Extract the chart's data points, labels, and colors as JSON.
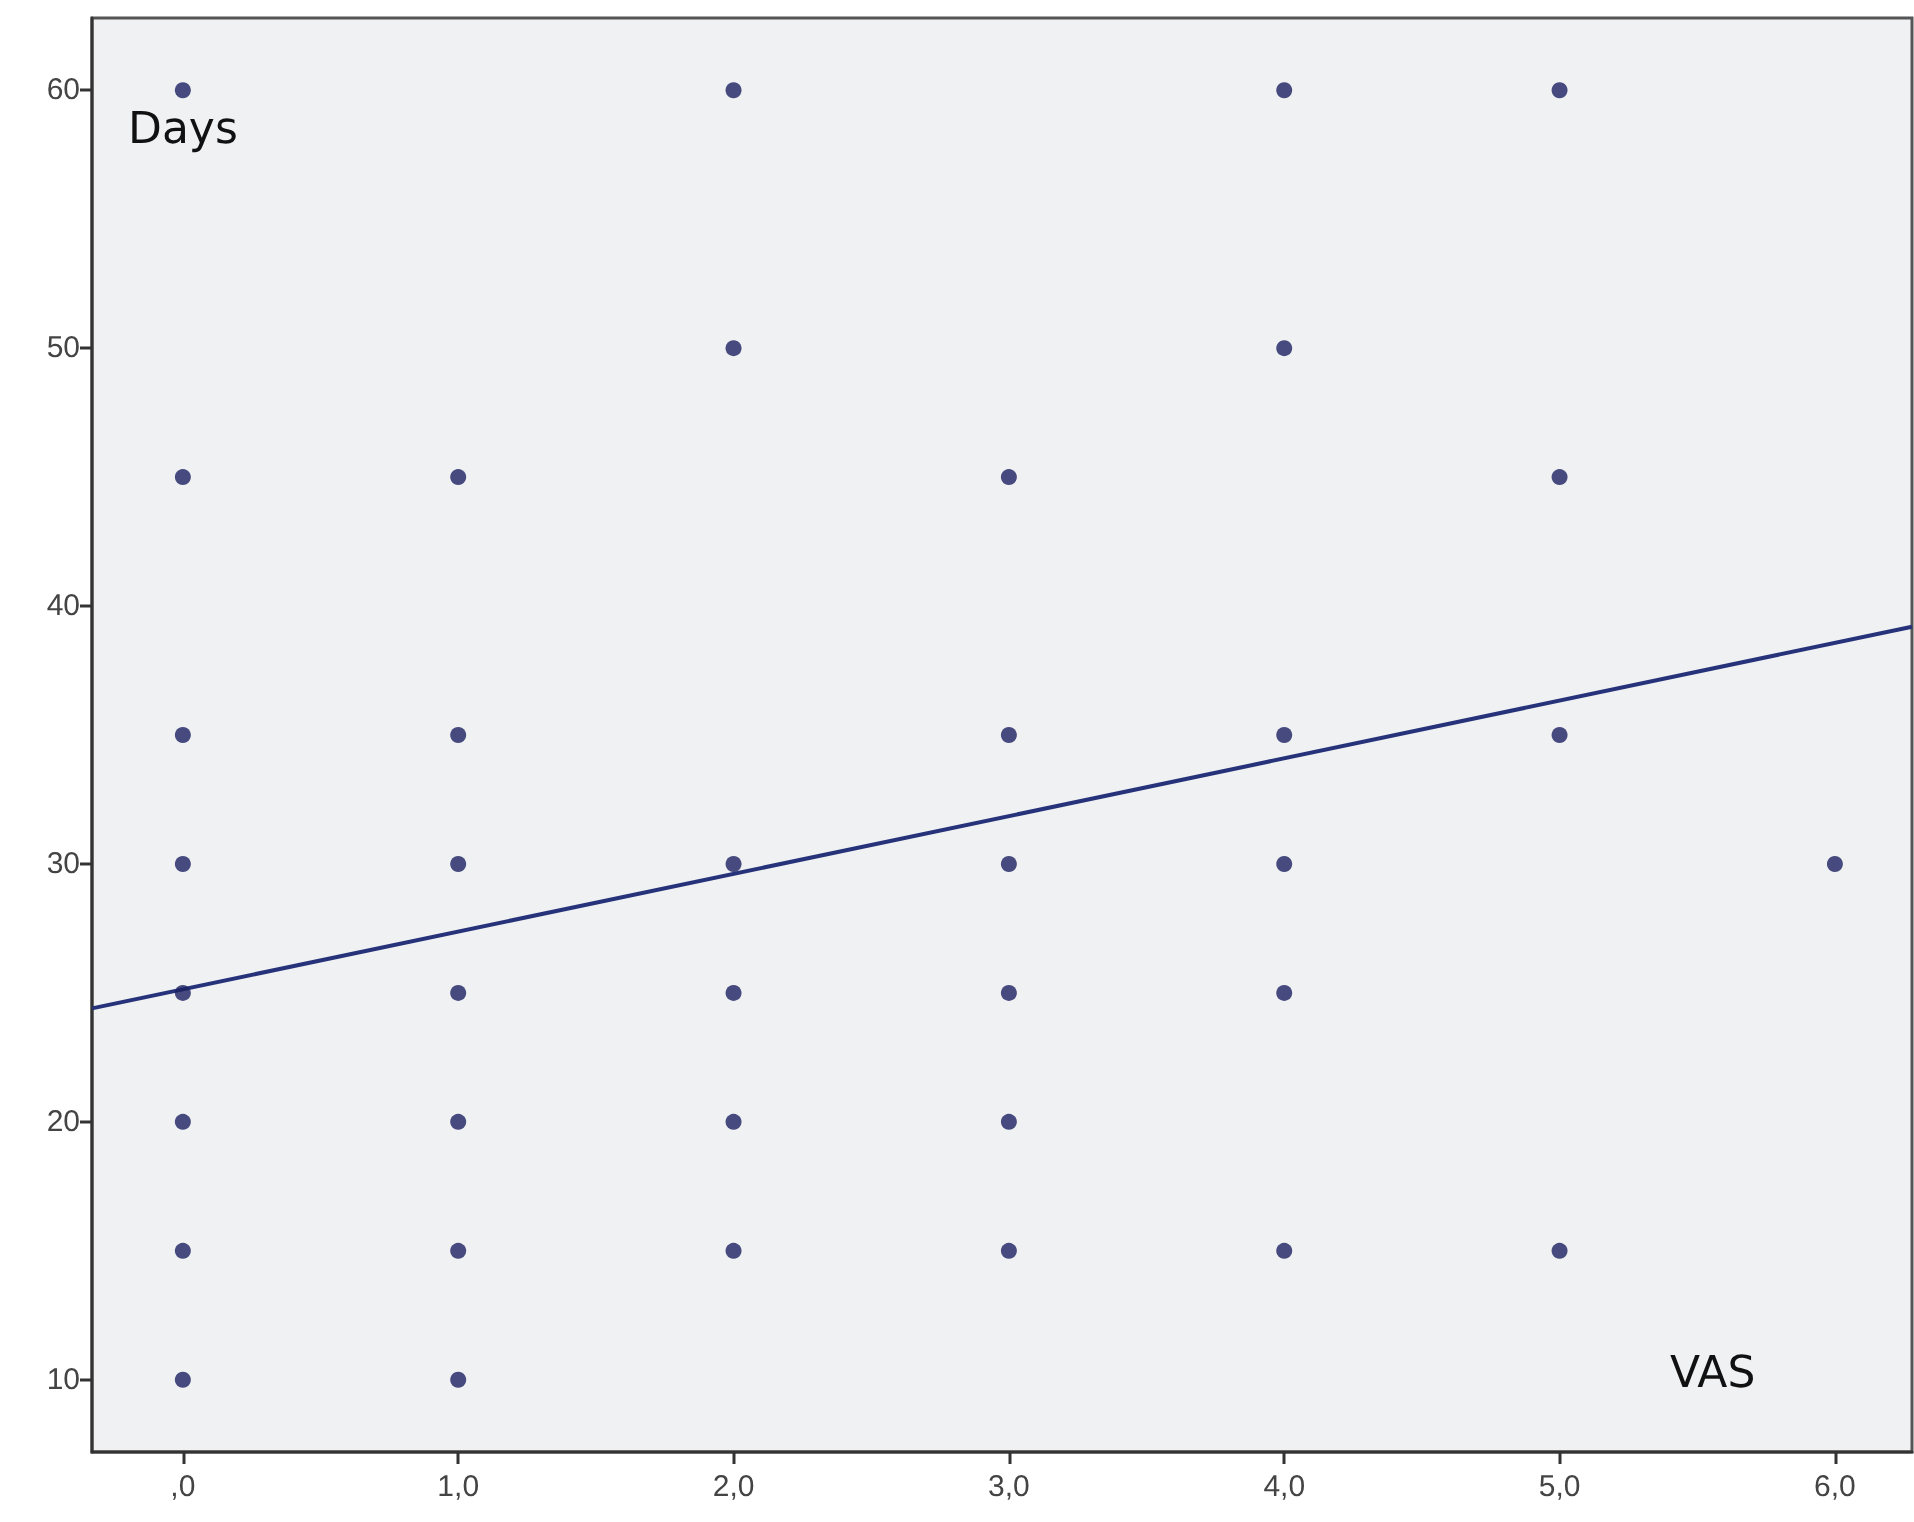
{
  "chart_data": {
    "type": "scatter",
    "xlabel": "VAS",
    "ylabel": "Days",
    "xlim": [
      -0.33,
      6.28
    ],
    "ylim": [
      7.2,
      62.8
    ],
    "xticks": [
      {
        "value": 0,
        "label": ",0"
      },
      {
        "value": 1,
        "label": "1,0"
      },
      {
        "value": 2,
        "label": "2,0"
      },
      {
        "value": 3,
        "label": "3,0"
      },
      {
        "value": 4,
        "label": "4,0"
      },
      {
        "value": 5,
        "label": "5,0"
      },
      {
        "value": 6,
        "label": "6,0"
      }
    ],
    "yticks": [
      10,
      20,
      30,
      40,
      50,
      60
    ],
    "grid": false,
    "marker": "circle",
    "series": [
      {
        "color": "#1c2160",
        "x": [
          0,
          0,
          0,
          0,
          0,
          0,
          0,
          0,
          1,
          1,
          1,
          1,
          1,
          1,
          1,
          2,
          2,
          2,
          2,
          2,
          2,
          3,
          3,
          3,
          3,
          3,
          3,
          4,
          4,
          4,
          4,
          4,
          4,
          5,
          5,
          5,
          5,
          6
        ],
        "values": [
          60,
          45,
          35,
          30,
          25,
          20,
          15,
          10,
          45,
          35,
          30,
          25,
          20,
          15,
          10,
          60,
          50,
          30,
          25,
          20,
          15,
          45,
          35,
          30,
          25,
          20,
          15,
          60,
          50,
          35,
          30,
          25,
          15,
          60,
          45,
          35,
          15,
          30
        ]
      },
      {
        "type": "line",
        "color": "#26337a",
        "x": [
          -0.33,
          6.28
        ],
        "values": [
          24.4,
          39.2
        ],
        "line_style": "solid",
        "marker": "none"
      }
    ]
  }
}
